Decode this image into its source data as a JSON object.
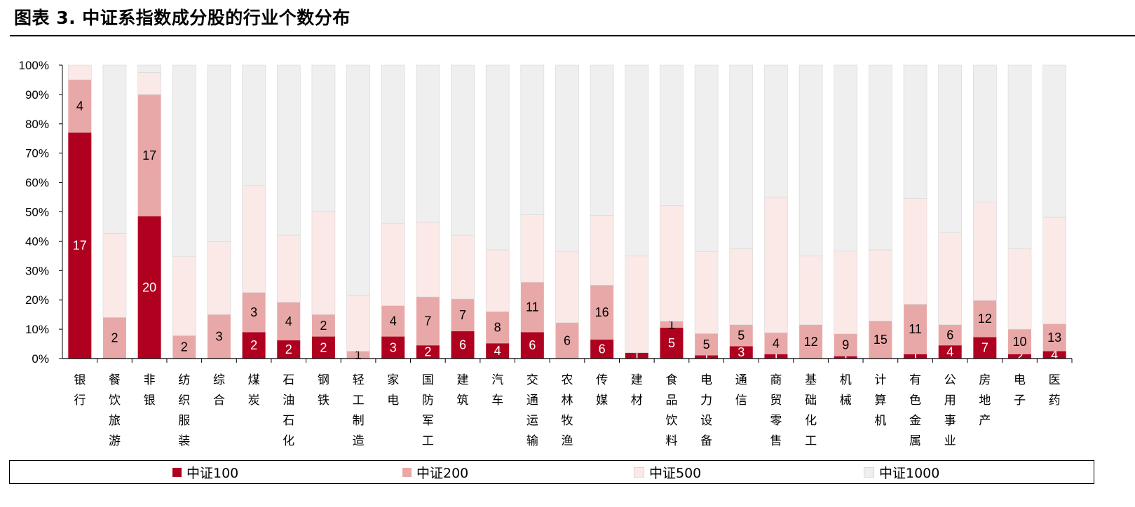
{
  "title": "图表 3. 中证系指数成分股的行业个数分布",
  "colors": {
    "s100": "#B00020",
    "s200": "#E8A8A8",
    "s500": "#FBE9E8",
    "s1000": "#EFEFEF"
  },
  "chart_data": {
    "type": "bar",
    "stacked": true,
    "percent_stacked": true,
    "ylim": [
      0,
      100
    ],
    "yticks": [
      "0%",
      "10%",
      "20%",
      "30%",
      "40%",
      "50%",
      "60%",
      "70%",
      "80%",
      "90%",
      "100%"
    ],
    "categories": [
      "银行",
      "餐饮旅游",
      "非银",
      "纺织服装",
      "综合",
      "煤炭",
      "石油石化",
      "钢铁",
      "轻工制造",
      "家电",
      "国防军工",
      "建筑",
      "汽车",
      "交通运输",
      "农林牧渔",
      "传媒",
      "建材",
      "食品饮料",
      "电力设备",
      "通信",
      "商贸零售",
      "基础化工",
      "机械",
      "计算机",
      "有色金属",
      "公用事业",
      "房地产",
      "电子",
      "医药"
    ],
    "series": [
      {
        "name": "中证100",
        "values": [
          77,
          0,
          48.5,
          0,
          0,
          9,
          6.2,
          7.5,
          0,
          7.5,
          4.5,
          9.3,
          5.2,
          9,
          0,
          6.5,
          2,
          10.5,
          1.1,
          4.2,
          1.5,
          0,
          0.8,
          0,
          1.5,
          4.5,
          7.3,
          1.5,
          2.5
        ],
        "labels": [
          "17",
          "",
          "20",
          "",
          "",
          "2",
          "2",
          "2",
          "",
          "3",
          "2",
          "6",
          "4",
          "6",
          "",
          "6",
          "1",
          "5",
          "1",
          "3",
          "1",
          "",
          "1",
          "",
          "1",
          "4",
          "7",
          "2",
          "4"
        ]
      },
      {
        "name": "中证200",
        "values": [
          18,
          14,
          41.5,
          7.8,
          15,
          13.5,
          13,
          7.5,
          2.5,
          10.5,
          16.5,
          11,
          10.8,
          17,
          12.2,
          18.5,
          0,
          2.2,
          7.4,
          7.3,
          7.3,
          11.5,
          7.6,
          12.8,
          17,
          7,
          12.5,
          8.5,
          9.3
        ],
        "labels": [
          "4",
          "2",
          "17",
          "2",
          "3",
          "3",
          "4",
          "2",
          "1",
          "4",
          "7",
          "7",
          "8",
          "11",
          "6",
          "16",
          "",
          "1",
          "5",
          "5",
          "4",
          "12",
          "9",
          "15",
          "11",
          "6",
          "12",
          "10",
          "13"
        ]
      },
      {
        "name": "中证500",
        "values": [
          5,
          28.6,
          7.5,
          27,
          25,
          36.5,
          22.8,
          35,
          19,
          28,
          25.5,
          21.7,
          21,
          23,
          24.3,
          23.8,
          33,
          39.5,
          27.9,
          26,
          46.2,
          23.5,
          28.2,
          24.2,
          36,
          31.5,
          33.5,
          27.5,
          36.4
        ]
      },
      {
        "name": "中证1000",
        "values": [
          0,
          57.4,
          2.5,
          65.2,
          60,
          41,
          58,
          50,
          78.5,
          54,
          53.5,
          58,
          63,
          51,
          63.5,
          51.2,
          65,
          47.8,
          63.6,
          62.5,
          45,
          65,
          63.4,
          63,
          45.5,
          57,
          46.7,
          62.5,
          51.8
        ]
      }
    ]
  },
  "legend": [
    {
      "label": "中证100",
      "key": "s100"
    },
    {
      "label": "中证200",
      "key": "s200"
    },
    {
      "label": "中证500",
      "key": "s500"
    },
    {
      "label": "中证1000",
      "key": "s1000"
    }
  ]
}
